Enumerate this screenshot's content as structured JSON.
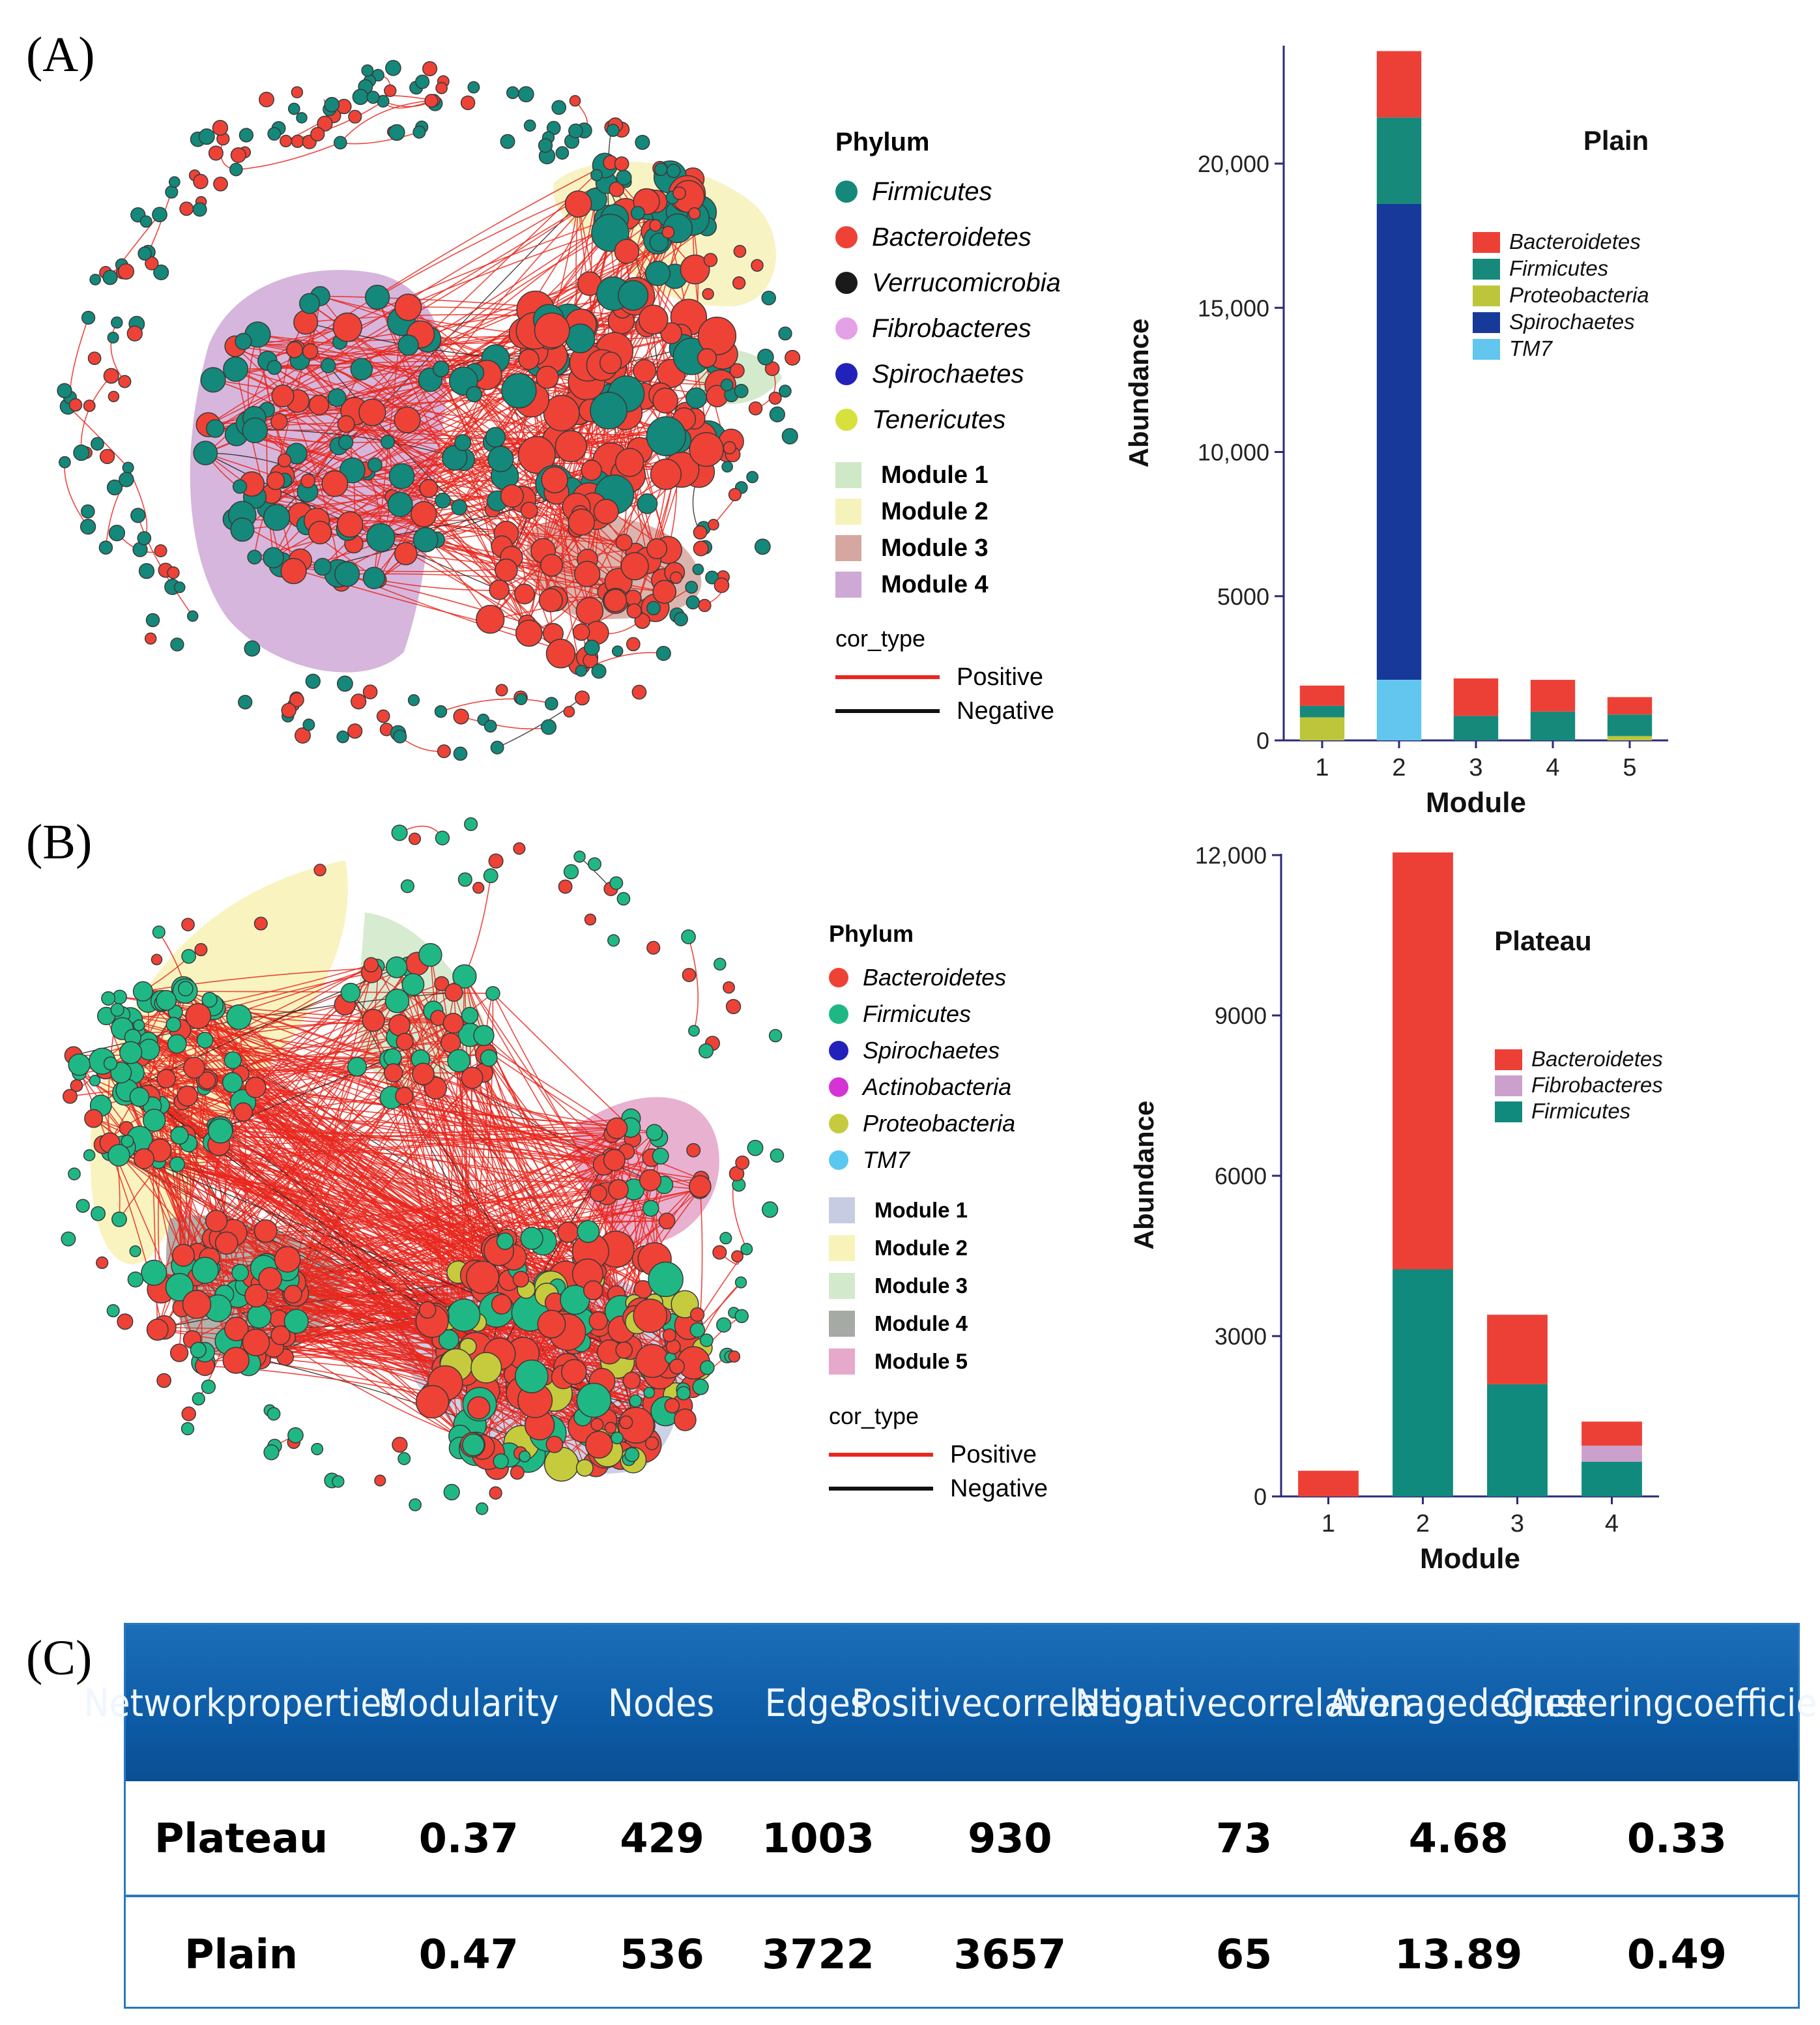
{
  "panels": {
    "a": "(A)",
    "b": "(B)",
    "c": "(C)"
  },
  "colors": {
    "bacteroidetes": "#ee4236",
    "firmicutes": "#14887a",
    "verrucomicrobia": "#1a1a1a",
    "fibrobacteres": "#e4a1e6",
    "spirochaetes": "#2222bb",
    "tenericutes": "#d6e13c",
    "actinobacteria": "#d633d6",
    "proteobacteria": "#c6cb3e",
    "tm7": "#5ac8ee",
    "firmicutesB": "#1fb884",
    "positive": "#e8281e",
    "negative": "#111111"
  },
  "legendA": {
    "title": "Phylum",
    "phyla": [
      {
        "name": "Firmicutes",
        "color": "#14887a"
      },
      {
        "name": "Bacteroidetes",
        "color": "#ee4236"
      },
      {
        "name": "Verrucomicrobia",
        "color": "#1a1a1a"
      },
      {
        "name": "Fibrobacteres",
        "color": "#e4a1e6"
      },
      {
        "name": "Spirochaetes",
        "color": "#2222bb"
      },
      {
        "name": "Tenericutes",
        "color": "#d6e13c"
      }
    ],
    "modules": [
      {
        "name": "Module 1",
        "color": "#cfe8c6"
      },
      {
        "name": "Module 2",
        "color": "#f6f2bc"
      },
      {
        "name": "Module 3",
        "color": "#d6a7a0"
      },
      {
        "name": "Module 4",
        "color": "#cfa9d6"
      }
    ],
    "cor_title": "cor_type",
    "cor": [
      {
        "name": "Positive",
        "color": "#e8281e"
      },
      {
        "name": "Negative",
        "color": "#111111"
      }
    ]
  },
  "legendB": {
    "title": "Phylum",
    "phyla": [
      {
        "name": "Bacteroidetes",
        "color": "#ee4236"
      },
      {
        "name": "Firmicutes",
        "color": "#1fb884"
      },
      {
        "name": "Spirochaetes",
        "color": "#2222bb"
      },
      {
        "name": "Actinobacteria",
        "color": "#d633d6"
      },
      {
        "name": "Proteobacteria",
        "color": "#c6cb3e"
      },
      {
        "name": "TM7",
        "color": "#5ac8ee"
      }
    ],
    "modules": [
      {
        "name": "Module 1",
        "color": "#c7cce3"
      },
      {
        "name": "Module 2",
        "color": "#f8f3b8"
      },
      {
        "name": "Module 3",
        "color": "#d3e9cc"
      },
      {
        "name": "Module 4",
        "color": "#a6aaa4"
      },
      {
        "name": "Module 5",
        "color": "#e6a9cb"
      }
    ],
    "cor_title": "cor_type",
    "cor": [
      {
        "name": "Positive",
        "color": "#e8281e"
      },
      {
        "name": "Negative",
        "color": "#111111"
      }
    ]
  },
  "chart_data": [
    {
      "type": "bar",
      "stacked": true,
      "title": "Plain",
      "xlabel": "Module",
      "ylabel": "Abundance",
      "categories": [
        "1",
        "2",
        "3",
        "4",
        "5"
      ],
      "ylim": [
        0,
        24000
      ],
      "yticks": [
        0,
        5000,
        10000,
        15000,
        20000
      ],
      "ytick_labels": [
        "0",
        "5000",
        "10,000",
        "15,000",
        "20,000"
      ],
      "legend": [
        "Bacteroidetes",
        "Firmicutes",
        "Proteobacteria",
        "Spirochaetes",
        "TM7"
      ],
      "stack_order": [
        "TM7",
        "Proteobacteria",
        "Spirochaetes",
        "Firmicutes",
        "Bacteroidetes"
      ],
      "series": [
        {
          "name": "Bacteroidetes",
          "color": "#ec4036",
          "values": [
            700,
            2300,
            1300,
            1100,
            600
          ]
        },
        {
          "name": "Firmicutes",
          "color": "#16897b",
          "values": [
            400,
            3000,
            850,
            1000,
            750
          ]
        },
        {
          "name": "Proteobacteria",
          "color": "#bdc63a",
          "values": [
            800,
            0,
            0,
            0,
            150
          ]
        },
        {
          "name": "Spirochaetes",
          "color": "#173a9a",
          "values": [
            0,
            16500,
            0,
            0,
            0
          ]
        },
        {
          "name": "TM7",
          "color": "#62c6ee",
          "values": [
            0,
            2100,
            0,
            0,
            0
          ]
        }
      ]
    },
    {
      "type": "bar",
      "stacked": true,
      "title": "Plateau",
      "xlabel": "Module",
      "ylabel": "Abundance",
      "categories": [
        "1",
        "2",
        "3",
        "4"
      ],
      "ylim": [
        0,
        12000
      ],
      "yticks": [
        0,
        3000,
        6000,
        9000,
        12000
      ],
      "ytick_labels": [
        "0",
        "3000",
        "6000",
        "9000",
        "12,000"
      ],
      "legend": [
        "Bacteroidetes",
        "Fibrobacteres",
        "Firmicutes"
      ],
      "stack_order": [
        "Firmicutes",
        "Fibrobacteres",
        "Bacteroidetes"
      ],
      "series": [
        {
          "name": "Bacteroidetes",
          "color": "#ec4036",
          "values": [
            480,
            7800,
            1300,
            450
          ]
        },
        {
          "name": "Fibrobacteres",
          "color": "#cca0cc",
          "values": [
            0,
            0,
            0,
            300
          ]
        },
        {
          "name": "Firmicutes",
          "color": "#108a7c",
          "values": [
            0,
            4250,
            2100,
            650
          ]
        }
      ]
    },
    {
      "type": "table",
      "headers": [
        [
          "Network",
          "properties"
        ],
        [
          "Modularity"
        ],
        [
          "Nodes"
        ],
        [
          "Edges"
        ],
        [
          "Positive",
          "correlation"
        ],
        [
          "Negative",
          "correlation"
        ],
        [
          "Average",
          "degree"
        ],
        [
          "Clustering",
          "coefficient"
        ]
      ],
      "rows": [
        [
          "Plateau",
          "0.37",
          "429",
          "1003",
          "930",
          "73",
          "4.68",
          "0.33"
        ],
        [
          "Plain",
          "0.47",
          "536",
          "3722",
          "3657",
          "65",
          "13.89",
          "0.49"
        ]
      ]
    }
  ]
}
